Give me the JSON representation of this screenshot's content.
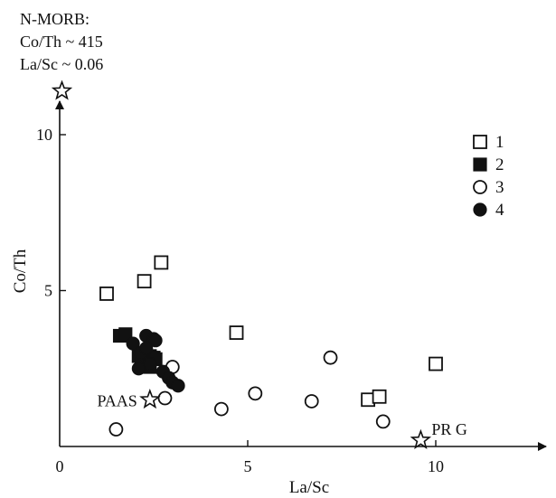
{
  "chart_data": {
    "type": "scatter",
    "title": "",
    "xlabel": "La/Sc",
    "ylabel": "Co/Th",
    "xlim": [
      0,
      13
    ],
    "ylim": [
      0,
      11
    ],
    "x_ticks": [
      0,
      5,
      10
    ],
    "y_ticks": [
      5,
      10
    ],
    "grid": false,
    "legend_position": "top-right",
    "annotation_lines": [
      "N-MORB:",
      "Co/Th ~ 415",
      "La/Sc ~ 0.06"
    ],
    "series": [
      {
        "name": "1",
        "marker": "square-open",
        "points": [
          [
            1.25,
            4.9
          ],
          [
            2.25,
            5.3
          ],
          [
            2.7,
            5.9
          ],
          [
            4.7,
            3.65
          ],
          [
            8.2,
            1.5
          ],
          [
            8.5,
            1.6
          ],
          [
            10.0,
            2.65
          ]
        ]
      },
      {
        "name": "2",
        "marker": "square-filled",
        "points": [
          [
            1.6,
            3.55
          ],
          [
            1.75,
            3.6
          ],
          [
            2.1,
            2.9
          ],
          [
            2.4,
            2.9
          ],
          [
            2.5,
            2.85
          ],
          [
            2.2,
            2.65
          ],
          [
            2.4,
            2.55
          ],
          [
            2.55,
            2.8
          ]
        ]
      },
      {
        "name": "3",
        "marker": "circle-open",
        "points": [
          [
            1.5,
            0.55
          ],
          [
            2.8,
            1.55
          ],
          [
            3.0,
            2.55
          ],
          [
            4.3,
            1.2
          ],
          [
            5.2,
            1.7
          ],
          [
            6.7,
            1.45
          ],
          [
            7.2,
            2.85
          ],
          [
            8.6,
            0.8
          ]
        ]
      },
      {
        "name": "4",
        "marker": "circle-filled",
        "points": [
          [
            1.95,
            3.3
          ],
          [
            2.3,
            3.55
          ],
          [
            2.5,
            3.45
          ],
          [
            2.55,
            3.4
          ],
          [
            2.15,
            3.0
          ],
          [
            2.3,
            3.15
          ],
          [
            2.4,
            2.65
          ],
          [
            2.1,
            2.5
          ],
          [
            2.75,
            2.4
          ],
          [
            2.9,
            2.2
          ],
          [
            3.0,
            2.05
          ],
          [
            3.15,
            1.95
          ]
        ]
      }
    ],
    "reference_points": [
      {
        "label": "N-MORB",
        "x": 0.06,
        "y": 11.4,
        "marker": "star-open"
      },
      {
        "label": "PAAS",
        "x": 2.4,
        "y": 1.5,
        "marker": "star-open"
      },
      {
        "label": "PR G",
        "x": 9.6,
        "y": 0.2,
        "marker": "star-open"
      }
    ]
  }
}
